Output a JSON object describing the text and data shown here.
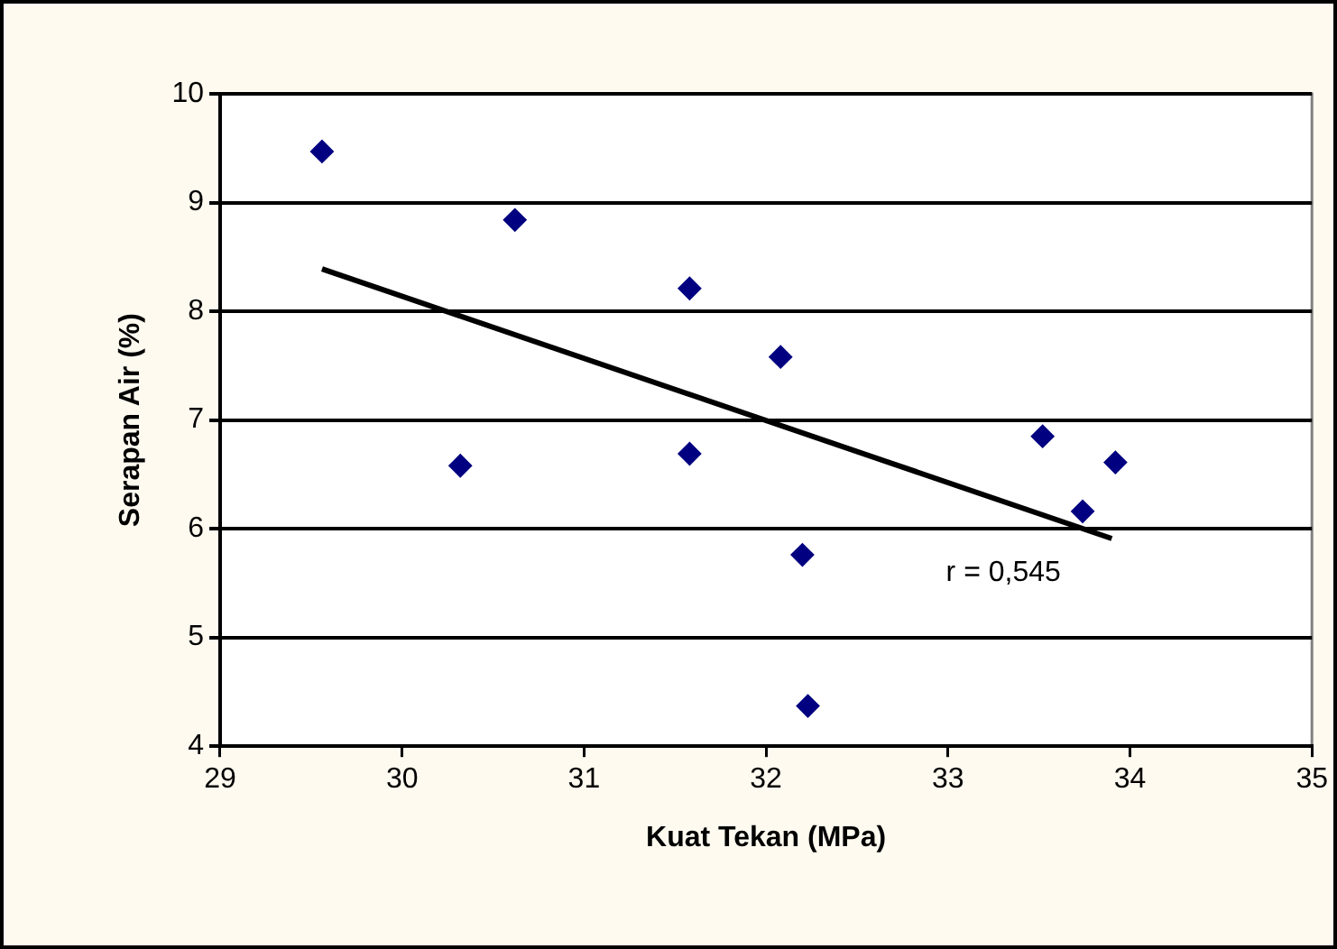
{
  "chart_data": {
    "type": "scatter",
    "xlabel": "Kuat Tekan (MPa)",
    "ylabel": "Serapan Air (%)",
    "xlim": [
      29,
      35
    ],
    "xticks": [
      29,
      30,
      31,
      32,
      33,
      34,
      35
    ],
    "ylim": [
      4,
      10
    ],
    "yticks": [
      4,
      5,
      6,
      7,
      8,
      9,
      10
    ],
    "grid": "y",
    "legend": false,
    "series": [
      {
        "type": "scatter",
        "marker": "diamond",
        "color": "#000080",
        "x": [
          29.56,
          30.32,
          30.62,
          31.58,
          31.58,
          32.08,
          32.2,
          32.23,
          33.52,
          33.74,
          33.92
        ],
        "values": [
          9.47,
          6.58,
          8.84,
          8.21,
          6.69,
          7.58,
          5.76,
          4.37,
          6.85,
          6.16,
          6.61
        ]
      },
      {
        "type": "line",
        "color": "#000000",
        "x": [
          29.56,
          33.9
        ],
        "values": [
          8.39,
          5.91
        ]
      }
    ],
    "annotations": [
      "r = 0,545"
    ]
  }
}
